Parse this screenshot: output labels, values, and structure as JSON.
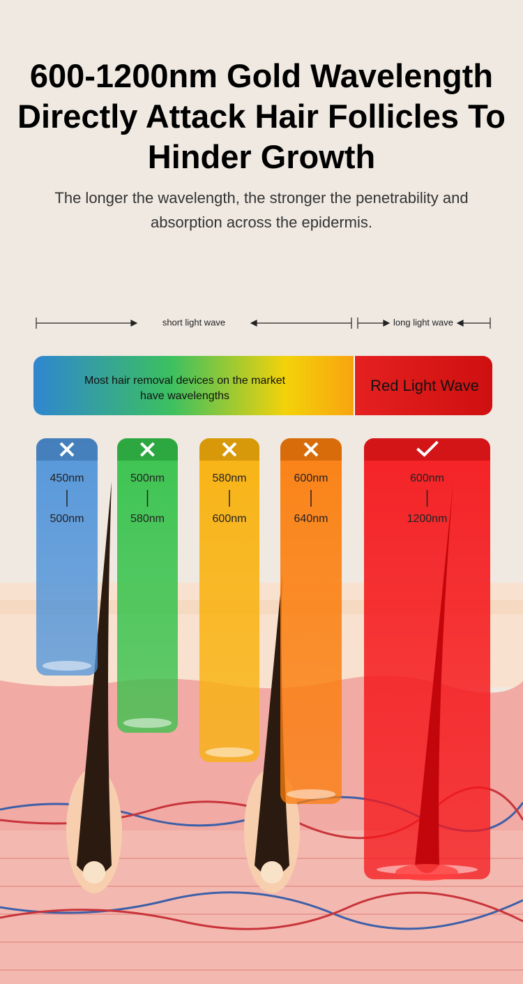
{
  "header": {
    "title_lines": [
      "600-1200nm Gold Wavelength",
      "Directly Attack Hair Follicles To",
      "Hinder Growth"
    ],
    "subtitle": "The longer the wavelength, the stronger the penetrability and absorption across the epidermis."
  },
  "scale": {
    "short": "short light wave",
    "long": "long light wave"
  },
  "bar": {
    "market": "Most hair removal devices on the market have wavelengths",
    "red": "Red Light Wave"
  },
  "columns": [
    {
      "from": "450nm",
      "to": "500nm",
      "effective": false,
      "color": "#4f93da"
    },
    {
      "from": "500nm",
      "to": "580nm",
      "effective": false,
      "color": "#34c24a"
    },
    {
      "from": "580nm",
      "to": "600nm",
      "effective": false,
      "color": "#f9b10a"
    },
    {
      "from": "600nm",
      "to": "640nm",
      "effective": false,
      "color": "#fb7d0c"
    },
    {
      "from": "600nm",
      "to": "1200nm",
      "effective": true,
      "color": "#f5171b"
    }
  ]
}
